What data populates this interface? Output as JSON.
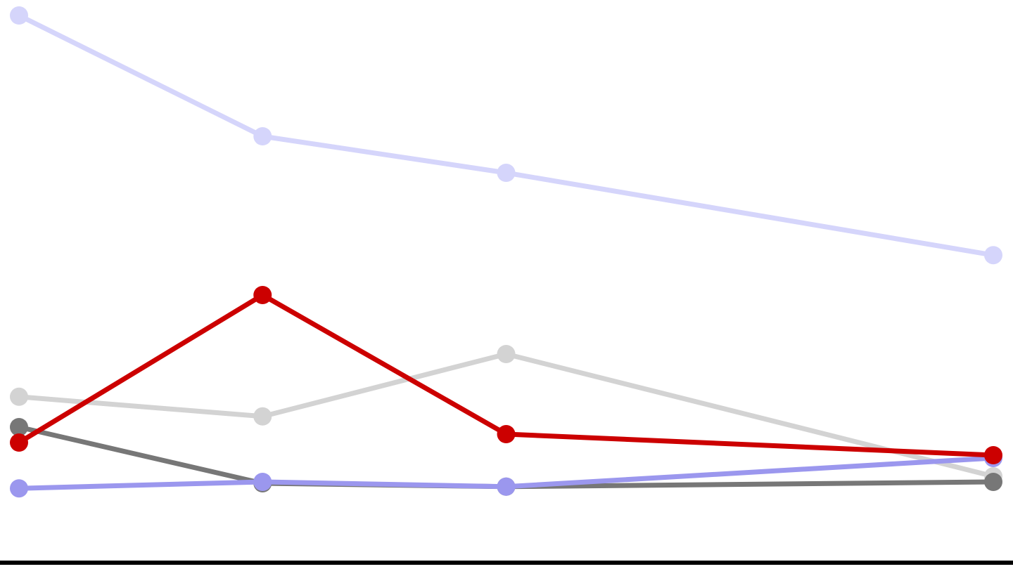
{
  "chart_data": {
    "type": "line",
    "x": [
      0,
      1,
      2,
      4
    ],
    "xlim": [
      0,
      4
    ],
    "ylim": [
      0,
      100
    ],
    "series": [
      {
        "color": "#d5d5fb",
        "values": [
          97.25,
          75.75,
          69.25,
          54.6
        ]
      },
      {
        "color": "#d3d3d3",
        "values": [
          29.4,
          25.9,
          37,
          15.25
        ]
      },
      {
        "color": "#777777",
        "values": [
          24,
          14,
          13.4,
          14.25
        ]
      },
      {
        "color": "#9b97ee",
        "values": [
          13.1,
          14.25,
          13.4,
          18.5
        ]
      },
      {
        "color": "#cc0000",
        "values": [
          21.25,
          47.5,
          22.75,
          19
        ]
      }
    ]
  }
}
